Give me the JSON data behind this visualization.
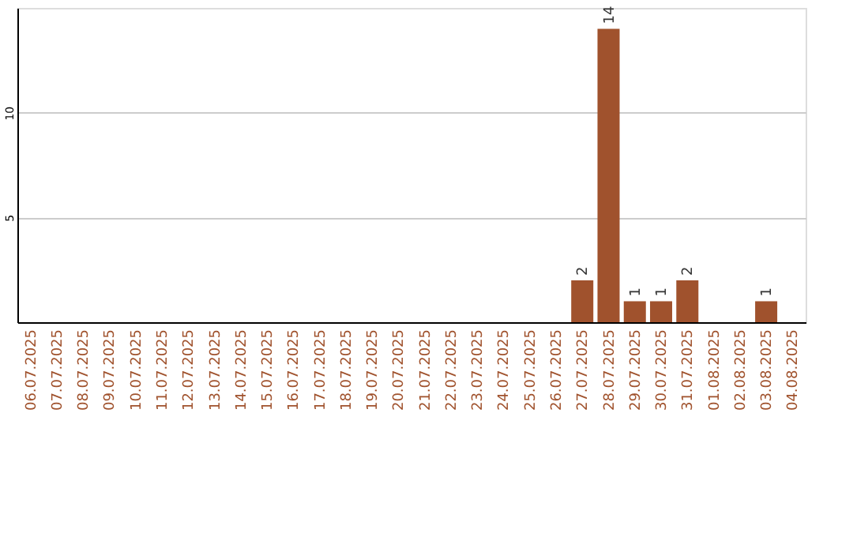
{
  "chart_data": {
    "type": "bar",
    "categories": [
      "06.07.2025",
      "07.07.2025",
      "08.07.2025",
      "09.07.2025",
      "10.07.2025",
      "11.07.2025",
      "12.07.2025",
      "13.07.2025",
      "14.07.2025",
      "15.07.2025",
      "16.07.2025",
      "17.07.2025",
      "18.07.2025",
      "19.07.2025",
      "20.07.2025",
      "21.07.2025",
      "22.07.2025",
      "23.07.2025",
      "24.07.2025",
      "25.07.2025",
      "26.07.2025",
      "27.07.2025",
      "28.07.2025",
      "29.07.2025",
      "30.07.2025",
      "31.07.2025",
      "01.08.2025",
      "02.08.2025",
      "03.08.2025",
      "04.08.2025"
    ],
    "values": [
      0,
      0,
      0,
      0,
      0,
      0,
      0,
      0,
      0,
      0,
      0,
      0,
      0,
      0,
      0,
      0,
      0,
      0,
      0,
      0,
      0,
      2,
      14,
      1,
      1,
      2,
      0,
      0,
      1,
      0
    ],
    "value_labels": [
      null,
      null,
      null,
      null,
      null,
      null,
      null,
      null,
      null,
      null,
      null,
      null,
      null,
      null,
      null,
      null,
      null,
      null,
      null,
      null,
      null,
      "2",
      "14",
      "1",
      "1",
      "2",
      null,
      null,
      "1",
      null
    ],
    "color": "#a0522d",
    "ylim": [
      0,
      15
    ],
    "yticks": [
      5,
      10
    ],
    "grid": "y"
  }
}
